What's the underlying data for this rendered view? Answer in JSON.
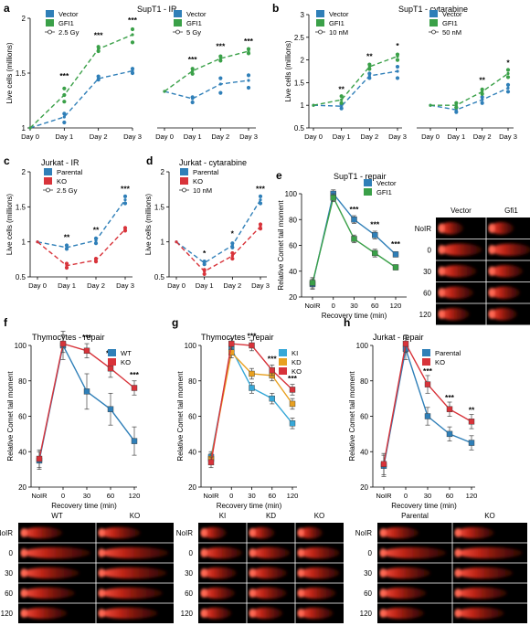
{
  "colors": {
    "blue": "#2f7fb8",
    "green": "#3aa048",
    "red": "#d8333a",
    "orange": "#e8a020",
    "ki": "#37a8d8"
  },
  "chart_data": [
    {
      "id": "a1",
      "panel": "a",
      "type": "line",
      "title": "SupT1 - IR",
      "categories": [
        "Day 0",
        "Day 1",
        "Day 2",
        "Day 3"
      ],
      "ylabel": "Live cells (millions)",
      "ylim": [
        1,
        2
      ],
      "yticks": [
        1,
        1.5,
        2
      ],
      "legend": [
        "Vector",
        "GFI1",
        "2.5 Gy"
      ],
      "series": [
        {
          "name": "Vector",
          "color": "blue",
          "values": [
            1,
            1.1,
            1.45,
            1.52
          ]
        },
        {
          "name": "GFI1",
          "color": "green",
          "values": [
            1,
            1.3,
            1.72,
            1.85
          ]
        }
      ],
      "dots": [
        {
          "color": "blue",
          "x": 1,
          "y": 1.05
        },
        {
          "color": "blue",
          "x": 1,
          "y": 1.13
        },
        {
          "color": "blue",
          "x": 2,
          "y": 1.44
        },
        {
          "color": "blue",
          "x": 2,
          "y": 1.47
        },
        {
          "color": "blue",
          "x": 3,
          "y": 1.5
        },
        {
          "color": "blue",
          "x": 3,
          "y": 1.54
        },
        {
          "color": "green",
          "x": 1,
          "y": 1.24
        },
        {
          "color": "green",
          "x": 1,
          "y": 1.3
        },
        {
          "color": "green",
          "x": 1,
          "y": 1.36
        },
        {
          "color": "green",
          "x": 2,
          "y": 1.7
        },
        {
          "color": "green",
          "x": 2,
          "y": 1.74
        },
        {
          "color": "green",
          "x": 3,
          "y": 1.78
        },
        {
          "color": "green",
          "x": 3,
          "y": 1.9
        }
      ],
      "annotations": [
        {
          "x": 1,
          "y": 1.45,
          "text": "***"
        },
        {
          "x": 2,
          "y": 1.82,
          "text": "***"
        },
        {
          "x": 3,
          "y": 1.96,
          "text": "***"
        }
      ]
    },
    {
      "id": "a2",
      "panel": "",
      "type": "line",
      "title": "",
      "categories": [
        "Day 0",
        "Day 1",
        "Day 2",
        "Day 3"
      ],
      "ylabel": "",
      "ylim": [
        0.5,
        2
      ],
      "yticks": [],
      "legend": [
        "Vector",
        "GFI1",
        "5 Gy"
      ],
      "series": [
        {
          "name": "Vector",
          "color": "blue",
          "values": [
            1,
            0.9,
            1.1,
            1.15
          ]
        },
        {
          "name": "GFI1",
          "color": "green",
          "values": [
            1,
            1.28,
            1.45,
            1.55
          ]
        }
      ],
      "dots": [
        {
          "color": "blue",
          "x": 1,
          "y": 0.85
        },
        {
          "color": "blue",
          "x": 1,
          "y": 0.92
        },
        {
          "color": "blue",
          "x": 2,
          "y": 0.98
        },
        {
          "color": "blue",
          "x": 2,
          "y": 1.18
        },
        {
          "color": "blue",
          "x": 3,
          "y": 1.05
        },
        {
          "color": "blue",
          "x": 3,
          "y": 1.22
        },
        {
          "color": "green",
          "x": 1,
          "y": 1.24
        },
        {
          "color": "green",
          "x": 1,
          "y": 1.31
        },
        {
          "color": "green",
          "x": 2,
          "y": 1.42
        },
        {
          "color": "green",
          "x": 2,
          "y": 1.48
        },
        {
          "color": "green",
          "x": 3,
          "y": 1.52
        },
        {
          "color": "green",
          "x": 3,
          "y": 1.58
        }
      ],
      "annotations": [
        {
          "x": 1,
          "y": 1.4,
          "text": "***"
        },
        {
          "x": 2,
          "y": 1.58,
          "text": "***"
        },
        {
          "x": 3,
          "y": 1.65,
          "text": "***"
        }
      ]
    },
    {
      "id": "b1",
      "panel": "b",
      "type": "line",
      "title": "SupT1 - cytarabine",
      "categories": [
        "Day 0",
        "Day 1",
        "Day 2",
        "Day 3"
      ],
      "ylabel": "Live cells (millions)",
      "ylim": [
        0.5,
        3
      ],
      "yticks": [
        0.5,
        1,
        1.5,
        2,
        2.5,
        3
      ],
      "legend": [
        "Vector",
        "GFI1",
        "10 nM"
      ],
      "series": [
        {
          "name": "Vector",
          "color": "blue",
          "values": [
            1,
            0.98,
            1.65,
            1.75
          ]
        },
        {
          "name": "GFI1",
          "color": "green",
          "values": [
            1,
            1.12,
            1.85,
            2.08
          ]
        }
      ],
      "dots": [
        {
          "color": "blue",
          "x": 1,
          "y": 0.93
        },
        {
          "color": "blue",
          "x": 1,
          "y": 1.02
        },
        {
          "color": "blue",
          "x": 2,
          "y": 1.6
        },
        {
          "color": "blue",
          "x": 2,
          "y": 1.7
        },
        {
          "color": "blue",
          "x": 3,
          "y": 1.6
        },
        {
          "color": "blue",
          "x": 3,
          "y": 1.85
        },
        {
          "color": "green",
          "x": 1,
          "y": 1.05
        },
        {
          "color": "green",
          "x": 1,
          "y": 1.2
        },
        {
          "color": "green",
          "x": 2,
          "y": 1.8
        },
        {
          "color": "green",
          "x": 2,
          "y": 1.9
        },
        {
          "color": "green",
          "x": 3,
          "y": 2.0
        },
        {
          "color": "green",
          "x": 3,
          "y": 2.12
        }
      ],
      "annotations": [
        {
          "x": 1,
          "y": 1.3,
          "text": "**"
        },
        {
          "x": 2,
          "y": 2.02,
          "text": "**"
        },
        {
          "x": 3,
          "y": 2.25,
          "text": "*"
        }
      ]
    },
    {
      "id": "b2",
      "panel": "",
      "type": "line",
      "title": "",
      "categories": [
        "Day 0",
        "Day 1",
        "Day 2",
        "Day 3"
      ],
      "ylabel": "",
      "ylim": [
        0.5,
        3
      ],
      "yticks": [],
      "legend": [
        "Vector",
        "GFI1",
        "50 nM"
      ],
      "series": [
        {
          "name": "Vector",
          "color": "blue",
          "values": [
            1,
            0.9,
            1.12,
            1.38
          ]
        },
        {
          "name": "GFI1",
          "color": "green",
          "values": [
            1,
            1.0,
            1.3,
            1.7
          ]
        }
      ],
      "dots": [
        {
          "color": "blue",
          "x": 1,
          "y": 0.85
        },
        {
          "color": "blue",
          "x": 1,
          "y": 0.95
        },
        {
          "color": "blue",
          "x": 2,
          "y": 1.05
        },
        {
          "color": "blue",
          "x": 2,
          "y": 1.18
        },
        {
          "color": "blue",
          "x": 3,
          "y": 1.3
        },
        {
          "color": "blue",
          "x": 3,
          "y": 1.45
        },
        {
          "color": "green",
          "x": 1,
          "y": 0.95
        },
        {
          "color": "green",
          "x": 1,
          "y": 1.05
        },
        {
          "color": "green",
          "x": 2,
          "y": 1.25
        },
        {
          "color": "green",
          "x": 2,
          "y": 1.35
        },
        {
          "color": "green",
          "x": 3,
          "y": 1.62
        },
        {
          "color": "green",
          "x": 3,
          "y": 1.78
        }
      ],
      "annotations": [
        {
          "x": 2,
          "y": 1.5,
          "text": "**"
        },
        {
          "x": 3,
          "y": 1.88,
          "text": "*"
        }
      ]
    },
    {
      "id": "c",
      "panel": "c",
      "type": "line",
      "title": "Jurkat - IR",
      "categories": [
        "Day 0",
        "Day 1",
        "Day 2",
        "Day 3"
      ],
      "ylabel": "Live cells (millions)",
      "ylim": [
        0.5,
        2
      ],
      "yticks": [
        0.5,
        1,
        1.5,
        2
      ],
      "legend": [
        "Parental",
        "KO",
        "2.5 Gy"
      ],
      "series": [
        {
          "name": "Parental",
          "color": "blue",
          "values": [
            1,
            0.92,
            1.02,
            1.6
          ]
        },
        {
          "name": "KO",
          "color": "red",
          "values": [
            1,
            0.66,
            0.74,
            1.18
          ]
        }
      ],
      "dots": [
        {
          "color": "blue",
          "x": 1,
          "y": 0.9
        },
        {
          "color": "blue",
          "x": 1,
          "y": 0.95
        },
        {
          "color": "blue",
          "x": 2,
          "y": 0.98
        },
        {
          "color": "blue",
          "x": 2,
          "y": 1.05
        },
        {
          "color": "blue",
          "x": 3,
          "y": 1.55
        },
        {
          "color": "blue",
          "x": 3,
          "y": 1.65
        },
        {
          "color": "red",
          "x": 1,
          "y": 0.63
        },
        {
          "color": "red",
          "x": 1,
          "y": 0.69
        },
        {
          "color": "red",
          "x": 2,
          "y": 0.72
        },
        {
          "color": "red",
          "x": 2,
          "y": 0.76
        },
        {
          "color": "red",
          "x": 3,
          "y": 1.16
        },
        {
          "color": "red",
          "x": 3,
          "y": 1.2
        }
      ],
      "annotations": [
        {
          "x": 1,
          "y": 1.03,
          "text": "**"
        },
        {
          "x": 2,
          "y": 1.13,
          "text": "**"
        },
        {
          "x": 3,
          "y": 1.72,
          "text": "***"
        }
      ]
    },
    {
      "id": "d",
      "panel": "d",
      "type": "line",
      "title": "Jurkat - cytarabine",
      "categories": [
        "Day 0",
        "Day 1",
        "Day 2",
        "Day 3"
      ],
      "ylabel": "Live cells (millions)",
      "ylim": [
        0.5,
        2
      ],
      "yticks": [
        0.5,
        1,
        1.5,
        2
      ],
      "legend": [
        "Parental",
        "KO",
        "10 nM"
      ],
      "series": [
        {
          "name": "Parental",
          "color": "blue",
          "values": [
            1,
            0.7,
            0.95,
            1.6
          ]
        },
        {
          "name": "KO",
          "color": "red",
          "values": [
            1,
            0.58,
            0.8,
            1.22
          ]
        }
      ],
      "dots": [
        {
          "color": "blue",
          "x": 1,
          "y": 0.68
        },
        {
          "color": "blue",
          "x": 1,
          "y": 0.72
        },
        {
          "color": "blue",
          "x": 2,
          "y": 0.92
        },
        {
          "color": "blue",
          "x": 2,
          "y": 0.98
        },
        {
          "color": "blue",
          "x": 3,
          "y": 1.55
        },
        {
          "color": "blue",
          "x": 3,
          "y": 1.65
        },
        {
          "color": "red",
          "x": 1,
          "y": 0.54
        },
        {
          "color": "red",
          "x": 1,
          "y": 0.6
        },
        {
          "color": "red",
          "x": 2,
          "y": 0.76
        },
        {
          "color": "red",
          "x": 2,
          "y": 0.84
        },
        {
          "color": "red",
          "x": 3,
          "y": 1.19
        },
        {
          "color": "red",
          "x": 3,
          "y": 1.25
        }
      ],
      "annotations": [
        {
          "x": 1,
          "y": 0.8,
          "text": "*"
        },
        {
          "x": 2,
          "y": 1.08,
          "text": "*"
        },
        {
          "x": 3,
          "y": 1.72,
          "text": "***"
        }
      ]
    },
    {
      "id": "e",
      "panel": "e",
      "type": "line",
      "title": "SupT1 - repair",
      "categories": [
        "NoIR",
        "0",
        "30",
        "60",
        "120"
      ],
      "xlabel": "Recovery time (min)",
      "ylabel": "Relative Comet tail moment",
      "ylim": [
        20,
        100
      ],
      "yticks": [
        20,
        40,
        60,
        80,
        100
      ],
      "legend": [
        "Vector",
        "GFI1"
      ],
      "series": [
        {
          "name": "Vector",
          "color": "blue",
          "values": [
            30,
            100,
            80,
            68,
            53
          ],
          "err": [
            4,
            3,
            3,
            3,
            2
          ]
        },
        {
          "name": "GFI1",
          "color": "green",
          "values": [
            31,
            97,
            65,
            54,
            43
          ],
          "err": [
            4,
            3,
            3,
            3,
            2
          ]
        }
      ],
      "annotations": [
        {
          "x": 2,
          "y": 86,
          "text": "***"
        },
        {
          "x": 3,
          "y": 74,
          "text": "***"
        },
        {
          "x": 4,
          "y": 59,
          "text": "***"
        }
      ],
      "comet": {
        "columns": [
          "Vector",
          "Gfi1"
        ],
        "rows": [
          "NoIR",
          "0",
          "30",
          "60",
          "120"
        ]
      }
    },
    {
      "id": "f",
      "panel": "f",
      "type": "line",
      "title": "Thymocytes - repair",
      "categories": [
        "NoIR",
        "0",
        "30",
        "60",
        "120"
      ],
      "xlabel": "Recovery time (min)",
      "ylabel": "Relative Comet tail moment",
      "ylim": [
        20,
        100
      ],
      "yticks": [
        20,
        40,
        60,
        80,
        100
      ],
      "legend": [
        "WT",
        "KO"
      ],
      "series": [
        {
          "name": "WT",
          "color": "blue",
          "values": [
            35,
            100,
            74,
            64,
            46
          ],
          "err": [
            5,
            8,
            10,
            9,
            8
          ]
        },
        {
          "name": "KO",
          "color": "red",
          "values": [
            36,
            101,
            97,
            87,
            76
          ],
          "err": [
            5,
            5,
            4,
            5,
            4
          ]
        }
      ],
      "annotations": [
        {
          "x": 2,
          "y": 103,
          "text": "***"
        },
        {
          "x": 3,
          "y": 94,
          "text": "***"
        },
        {
          "x": 4,
          "y": 82,
          "text": "***"
        }
      ],
      "comet": {
        "columns": [
          "WT",
          "KO"
        ],
        "rows": [
          "NoIR",
          "0",
          "30",
          "60",
          "120"
        ]
      }
    },
    {
      "id": "g",
      "panel": "g",
      "type": "line",
      "title": "Thymocytes - repair",
      "categories": [
        "NoIR",
        "0",
        "30",
        "60",
        "120"
      ],
      "xlabel": "Recovery time (min)",
      "ylabel": "Relative Comet tail moment",
      "ylim": [
        20,
        100
      ],
      "yticks": [
        20,
        40,
        60,
        80,
        100
      ],
      "legend": [
        "KI",
        "KD",
        "KO"
      ],
      "series": [
        {
          "name": "KI",
          "color": "ki",
          "values": [
            37,
            98,
            76,
            70,
            56
          ],
          "err": [
            3,
            3,
            3,
            3,
            3
          ]
        },
        {
          "name": "KD",
          "color": "orange",
          "values": [
            36,
            96,
            84,
            83,
            67
          ],
          "err": [
            3,
            3,
            3,
            3,
            3
          ]
        },
        {
          "name": "KO",
          "color": "red",
          "values": [
            34,
            101,
            100,
            86,
            75
          ],
          "err": [
            3,
            3,
            3,
            3,
            3
          ]
        }
      ],
      "annotations": [
        {
          "x": 2,
          "y": 104,
          "text": "***"
        },
        {
          "x": 3,
          "y": 91,
          "text": "***"
        },
        {
          "x": 4,
          "y": 80,
          "text": "***"
        }
      ],
      "comet": {
        "columns": [
          "KI",
          "KD",
          "KO"
        ],
        "rows": [
          "NoIR",
          "0",
          "30",
          "60",
          "120"
        ]
      }
    },
    {
      "id": "h",
      "panel": "h",
      "type": "line",
      "title": "Jurkat - repair",
      "categories": [
        "NoIR",
        "0",
        "30",
        "60",
        "120"
      ],
      "xlabel": "Recovery time (min)",
      "ylabel": "Relative Comet tail moment",
      "ylim": [
        20,
        100
      ],
      "yticks": [
        20,
        40,
        60,
        80,
        100
      ],
      "legend": [
        "Parental",
        "KO"
      ],
      "series": [
        {
          "name": "Parental",
          "color": "blue",
          "values": [
            32,
            98,
            60,
            50,
            45
          ],
          "err": [
            6,
            6,
            5,
            4,
            4
          ]
        },
        {
          "name": "KO",
          "color": "red",
          "values": [
            33,
            101,
            78,
            64,
            57
          ],
          "err": [
            6,
            5,
            5,
            4,
            4
          ]
        }
      ],
      "annotations": [
        {
          "x": 2,
          "y": 84,
          "text": "***"
        },
        {
          "x": 3,
          "y": 69,
          "text": "***"
        },
        {
          "x": 4,
          "y": 62,
          "text": "**"
        }
      ],
      "comet": {
        "columns": [
          "Parental",
          "KO"
        ],
        "rows": [
          "NoIR",
          "0",
          "30",
          "60",
          "120"
        ]
      }
    }
  ]
}
